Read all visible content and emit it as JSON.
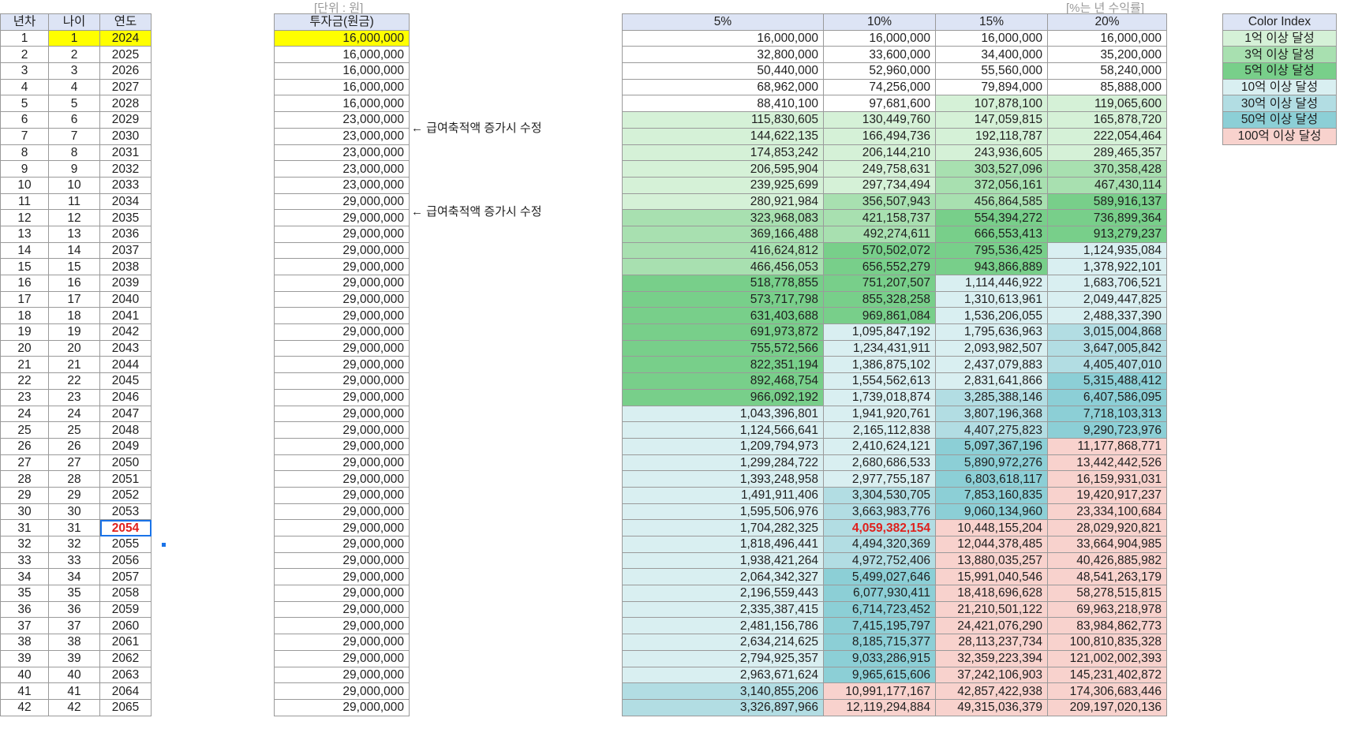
{
  "notes": {
    "unit": "[단위 : 원]",
    "rate": "[%는 년 수익률]",
    "arrow1": "← 급여축적액 증가시 수정",
    "arrow2": "← 급여축적액 증가시 수정"
  },
  "left_table": {
    "headers": [
      "년차",
      "나이",
      "연도"
    ],
    "rows": [
      [
        "1",
        "1",
        "2024"
      ],
      [
        "2",
        "2",
        "2025"
      ],
      [
        "3",
        "3",
        "2026"
      ],
      [
        "4",
        "4",
        "2027"
      ],
      [
        "5",
        "5",
        "2028"
      ],
      [
        "6",
        "6",
        "2029"
      ],
      [
        "7",
        "7",
        "2030"
      ],
      [
        "8",
        "8",
        "2031"
      ],
      [
        "9",
        "9",
        "2032"
      ],
      [
        "10",
        "10",
        "2033"
      ],
      [
        "11",
        "11",
        "2034"
      ],
      [
        "12",
        "12",
        "2035"
      ],
      [
        "13",
        "13",
        "2036"
      ],
      [
        "14",
        "14",
        "2037"
      ],
      [
        "15",
        "15",
        "2038"
      ],
      [
        "16",
        "16",
        "2039"
      ],
      [
        "17",
        "17",
        "2040"
      ],
      [
        "18",
        "18",
        "2041"
      ],
      [
        "19",
        "19",
        "2042"
      ],
      [
        "20",
        "20",
        "2043"
      ],
      [
        "21",
        "21",
        "2044"
      ],
      [
        "22",
        "22",
        "2045"
      ],
      [
        "23",
        "23",
        "2046"
      ],
      [
        "24",
        "24",
        "2047"
      ],
      [
        "25",
        "25",
        "2048"
      ],
      [
        "26",
        "26",
        "2049"
      ],
      [
        "27",
        "27",
        "2050"
      ],
      [
        "28",
        "28",
        "2051"
      ],
      [
        "29",
        "29",
        "2052"
      ],
      [
        "30",
        "30",
        "2053"
      ],
      [
        "31",
        "31",
        "2054"
      ],
      [
        "32",
        "32",
        "2055"
      ],
      [
        "33",
        "33",
        "2056"
      ],
      [
        "34",
        "34",
        "2057"
      ],
      [
        "35",
        "35",
        "2058"
      ],
      [
        "36",
        "36",
        "2059"
      ],
      [
        "37",
        "37",
        "2060"
      ],
      [
        "38",
        "38",
        "2061"
      ],
      [
        "39",
        "39",
        "2062"
      ],
      [
        "40",
        "40",
        "2063"
      ],
      [
        "41",
        "41",
        "2064"
      ],
      [
        "42",
        "42",
        "2065"
      ]
    ]
  },
  "investment_table": {
    "header": "투자금(원금)",
    "rows": [
      "16,000,000",
      "16,000,000",
      "16,000,000",
      "16,000,000",
      "16,000,000",
      "23,000,000",
      "23,000,000",
      "23,000,000",
      "23,000,000",
      "23,000,000",
      "29,000,000",
      "29,000,000",
      "29,000,000",
      "29,000,000",
      "29,000,000",
      "29,000,000",
      "29,000,000",
      "29,000,000",
      "29,000,000",
      "29,000,000",
      "29,000,000",
      "29,000,000",
      "29,000,000",
      "29,000,000",
      "29,000,000",
      "29,000,000",
      "29,000,000",
      "29,000,000",
      "29,000,000",
      "29,000,000",
      "29,000,000",
      "29,000,000",
      "29,000,000",
      "29,000,000",
      "29,000,000",
      "29,000,000",
      "29,000,000",
      "29,000,000",
      "29,000,000",
      "29,000,000",
      "29,000,000",
      "29,000,000"
    ]
  },
  "returns_table": {
    "headers": [
      "5%",
      "10%",
      "15%",
      "20%"
    ],
    "rows": [
      [
        "16,000,000",
        "16,000,000",
        "16,000,000",
        "16,000,000"
      ],
      [
        "32,800,000",
        "33,600,000",
        "34,400,000",
        "35,200,000"
      ],
      [
        "50,440,000",
        "52,960,000",
        "55,560,000",
        "58,240,000"
      ],
      [
        "68,962,000",
        "74,256,000",
        "79,894,000",
        "85,888,000"
      ],
      [
        "88,410,100",
        "97,681,600",
        "107,878,100",
        "119,065,600"
      ],
      [
        "115,830,605",
        "130,449,760",
        "147,059,815",
        "165,878,720"
      ],
      [
        "144,622,135",
        "166,494,736",
        "192,118,787",
        "222,054,464"
      ],
      [
        "174,853,242",
        "206,144,210",
        "243,936,605",
        "289,465,357"
      ],
      [
        "206,595,904",
        "249,758,631",
        "303,527,096",
        "370,358,428"
      ],
      [
        "239,925,699",
        "297,734,494",
        "372,056,161",
        "467,430,114"
      ],
      [
        "280,921,984",
        "356,507,943",
        "456,864,585",
        "589,916,137"
      ],
      [
        "323,968,083",
        "421,158,737",
        "554,394,272",
        "736,899,364"
      ],
      [
        "369,166,488",
        "492,274,611",
        "666,553,413",
        "913,279,237"
      ],
      [
        "416,624,812",
        "570,502,072",
        "795,536,425",
        "1,124,935,084"
      ],
      [
        "466,456,053",
        "656,552,279",
        "943,866,889",
        "1,378,922,101"
      ],
      [
        "518,778,855",
        "751,207,507",
        "1,114,446,922",
        "1,683,706,521"
      ],
      [
        "573,717,798",
        "855,328,258",
        "1,310,613,961",
        "2,049,447,825"
      ],
      [
        "631,403,688",
        "969,861,084",
        "1,536,206,055",
        "2,488,337,390"
      ],
      [
        "691,973,872",
        "1,095,847,192",
        "1,795,636,963",
        "3,015,004,868"
      ],
      [
        "755,572,566",
        "1,234,431,911",
        "2,093,982,507",
        "3,647,005,842"
      ],
      [
        "822,351,194",
        "1,386,875,102",
        "2,437,079,883",
        "4,405,407,010"
      ],
      [
        "892,468,754",
        "1,554,562,613",
        "2,831,641,866",
        "5,315,488,412"
      ],
      [
        "966,092,192",
        "1,739,018,874",
        "3,285,388,146",
        "6,407,586,095"
      ],
      [
        "1,043,396,801",
        "1,941,920,761",
        "3,807,196,368",
        "7,718,103,313"
      ],
      [
        "1,124,566,641",
        "2,165,112,838",
        "4,407,275,823",
        "9,290,723,976"
      ],
      [
        "1,209,794,973",
        "2,410,624,121",
        "5,097,367,196",
        "11,177,868,771"
      ],
      [
        "1,299,284,722",
        "2,680,686,533",
        "5,890,972,276",
        "13,442,442,526"
      ],
      [
        "1,393,248,958",
        "2,977,755,187",
        "6,803,618,117",
        "16,159,931,031"
      ],
      [
        "1,491,911,406",
        "3,304,530,705",
        "7,853,160,835",
        "19,420,917,237"
      ],
      [
        "1,595,506,976",
        "3,663,983,776",
        "9,060,134,960",
        "23,334,100,684"
      ],
      [
        "1,704,282,325",
        "4,059,382,154",
        "10,448,155,204",
        "28,029,920,821"
      ],
      [
        "1,818,496,441",
        "4,494,320,369",
        "12,044,378,485",
        "33,664,904,985"
      ],
      [
        "1,938,421,264",
        "4,972,752,406",
        "13,880,035,257",
        "40,426,885,982"
      ],
      [
        "2,064,342,327",
        "5,499,027,646",
        "15,991,040,546",
        "48,541,263,179"
      ],
      [
        "2,196,559,443",
        "6,077,930,411",
        "18,418,696,628",
        "58,278,515,815"
      ],
      [
        "2,335,387,415",
        "6,714,723,452",
        "21,210,501,122",
        "69,963,218,978"
      ],
      [
        "2,481,156,786",
        "7,415,195,797",
        "24,421,076,290",
        "83,984,862,773"
      ],
      [
        "2,634,214,625",
        "8,185,715,377",
        "28,113,237,734",
        "100,810,835,328"
      ],
      [
        "2,794,925,357",
        "9,033,286,915",
        "32,359,223,394",
        "121,002,002,393"
      ],
      [
        "2,963,671,624",
        "9,965,615,606",
        "37,242,106,903",
        "145,231,402,872"
      ],
      [
        "3,140,855,206",
        "10,991,177,167",
        "42,857,422,938",
        "174,306,683,446"
      ],
      [
        "3,326,897,966",
        "12,119,294,884",
        "49,315,036,379",
        "209,197,020,136"
      ]
    ]
  },
  "color_index": {
    "title": "Color Index",
    "items": [
      {
        "label": "1억 이상 달성",
        "color": "#d5f1d7"
      },
      {
        "label": "3억 이상 달성",
        "color": "#a8e0b0"
      },
      {
        "label": "5억 이상 달성",
        "color": "#78cf8a"
      },
      {
        "label": "10억 이상 달성",
        "color": "#d9eff1"
      },
      {
        "label": "30억 이상 달성",
        "color": "#b2dde3"
      },
      {
        "label": "50억 이상 달성",
        "color": "#8ccfd6"
      },
      {
        "label": "100억 이상 달성",
        "color": "#f8d2cd"
      }
    ]
  },
  "highlight_colors": {
    "yellow": "#ffff00",
    "selection": "#1a73e8",
    "emphasis_text": "#e0201c"
  }
}
